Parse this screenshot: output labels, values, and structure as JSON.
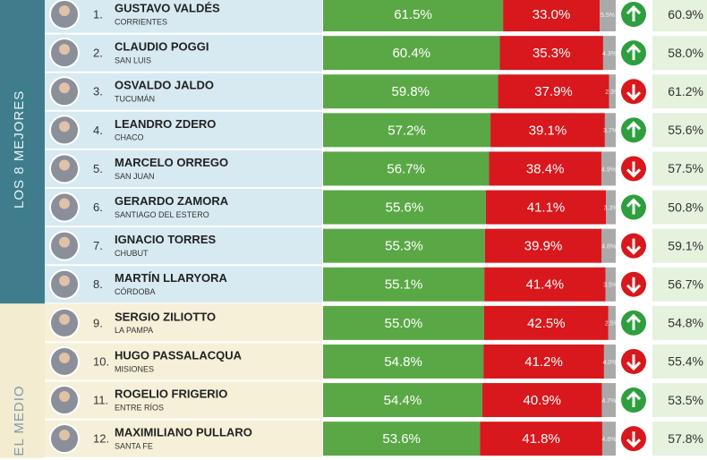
{
  "groups": [
    {
      "label": "LOS 8 MEJORES",
      "rows": [
        {
          "rank": "1.",
          "name": "GUSTAVO VALDÉS",
          "province": "CORRIENTES",
          "values": [
            61.5,
            33.0,
            5.5
          ],
          "value_labels": [
            "61.5%",
            "33.0%",
            "5.5%"
          ],
          "trend": "up",
          "previous": "60.9%"
        },
        {
          "rank": "2.",
          "name": "CLAUDIO POGGI",
          "province": "SAN LUIS",
          "values": [
            60.4,
            35.3,
            4.3
          ],
          "value_labels": [
            "60.4%",
            "35.3%",
            "4.3%"
          ],
          "trend": "up",
          "previous": "58.0%"
        },
        {
          "rank": "3.",
          "name": "OSVALDO JALDO",
          "province": "TUCUMÁN",
          "values": [
            59.8,
            37.9,
            2.3
          ],
          "value_labels": [
            "59.8%",
            "37.9%",
            "2.3%"
          ],
          "trend": "down",
          "previous": "61.2%"
        },
        {
          "rank": "4.",
          "name": "LEANDRO ZDERO",
          "province": "CHACO",
          "values": [
            57.2,
            39.1,
            3.7
          ],
          "value_labels": [
            "57.2%",
            "39.1%",
            "3.7%"
          ],
          "trend": "up",
          "previous": "55.6%"
        },
        {
          "rank": "5.",
          "name": "MARCELO ORREGO",
          "province": "SAN JUAN",
          "values": [
            56.7,
            38.4,
            4.9
          ],
          "value_labels": [
            "56.7%",
            "38.4%",
            "4.9%"
          ],
          "trend": "down",
          "previous": "57.5%"
        },
        {
          "rank": "6.",
          "name": "GERARDO ZAMORA",
          "province": "SANTIAGO DEL ESTERO",
          "values": [
            55.6,
            41.1,
            3.3
          ],
          "value_labels": [
            "55.6%",
            "41.1%",
            "3.3%"
          ],
          "trend": "up",
          "previous": "50.8%"
        },
        {
          "rank": "7.",
          "name": "IGNACIO TORRES",
          "province": "CHUBUT",
          "values": [
            55.3,
            39.9,
            4.8
          ],
          "value_labels": [
            "55.3%",
            "39.9%",
            "4.8%"
          ],
          "trend": "down",
          "previous": "59.1%"
        },
        {
          "rank": "8.",
          "name": "MARTÍN LLARYORA",
          "province": "CÓRDOBA",
          "values": [
            55.1,
            41.4,
            3.5
          ],
          "value_labels": [
            "55.1%",
            "41.4%",
            "3.5%"
          ],
          "trend": "down",
          "previous": "56.7%"
        }
      ]
    },
    {
      "label": "EL MEDIO",
      "rows": [
        {
          "rank": "9.",
          "name": "SERGIO ZILIOTTO",
          "province": "LA PAMPA",
          "values": [
            55.0,
            42.5,
            2.5
          ],
          "value_labels": [
            "55.0%",
            "42.5%",
            "2.5%"
          ],
          "trend": "up",
          "previous": "54.8%"
        },
        {
          "rank": "10.",
          "name": "HUGO PASSALACQUA",
          "province": "MISIONES",
          "values": [
            54.8,
            41.2,
            4.0
          ],
          "value_labels": [
            "54.8%",
            "41.2%",
            "4.0%"
          ],
          "trend": "down",
          "previous": "55.4%"
        },
        {
          "rank": "11.",
          "name": "ROGELIO FRIGERIO",
          "province": "ENTRE RÍOS",
          "values": [
            54.4,
            40.9,
            4.7
          ],
          "value_labels": [
            "54.4%",
            "40.9%",
            "4.7%"
          ],
          "trend": "up",
          "previous": "53.5%"
        },
        {
          "rank": "12.",
          "name": "MAXIMILIANO PULLARO",
          "province": "SANTA FE",
          "values": [
            53.6,
            41.8,
            4.6
          ],
          "value_labels": [
            "53.6%",
            "41.8%",
            "4.6%"
          ],
          "trend": "down",
          "previous": "57.8%"
        }
      ]
    }
  ],
  "colors": [
    "#5aa845",
    "#d8181c",
    "#a9a9a9"
  ],
  "scale_max": 100
}
